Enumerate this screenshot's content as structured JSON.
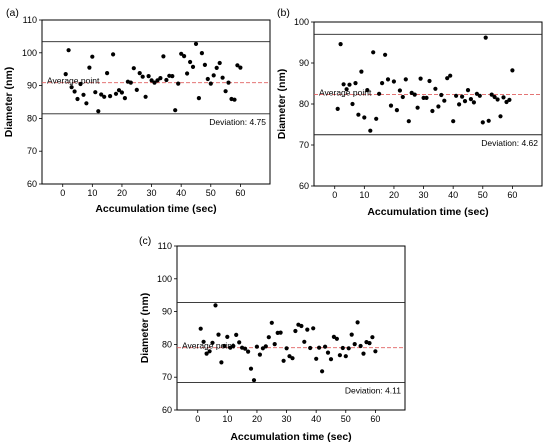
{
  "chart_data": [
    {
      "panel_label": "(a)",
      "type": "scatter",
      "xlabel": "Accumulation time (sec)",
      "ylabel": "Diameter (nm)",
      "xlim": [
        -7,
        70
      ],
      "ylim": [
        60,
        110
      ],
      "xticks": [
        0,
        10,
        20,
        30,
        40,
        50,
        60
      ],
      "yticks": [
        60,
        70,
        80,
        90,
        100,
        110
      ],
      "average_label": "Average point",
      "deviation_label": "Deviation: 4.75",
      "lines": {
        "upper": 103.4,
        "average": 90.9,
        "lower": 81.4
      },
      "points": [
        {
          "x": 1,
          "y": 93.5
        },
        {
          "x": 2,
          "y": 100.8
        },
        {
          "x": 3,
          "y": 89.5
        },
        {
          "x": 4,
          "y": 88.2
        },
        {
          "x": 5,
          "y": 85.9
        },
        {
          "x": 6,
          "y": 90.5
        },
        {
          "x": 7,
          "y": 87.2
        },
        {
          "x": 8,
          "y": 84.6
        },
        {
          "x": 9,
          "y": 95.5
        },
        {
          "x": 10,
          "y": 98.8
        },
        {
          "x": 11,
          "y": 88.0
        },
        {
          "x": 12,
          "y": 82.2
        },
        {
          "x": 13,
          "y": 87.3
        },
        {
          "x": 14,
          "y": 86.6
        },
        {
          "x": 15,
          "y": 93.8
        },
        {
          "x": 16,
          "y": 86.8
        },
        {
          "x": 17,
          "y": 99.5
        },
        {
          "x": 18,
          "y": 87.5
        },
        {
          "x": 19,
          "y": 88.6
        },
        {
          "x": 20,
          "y": 87.9
        },
        {
          "x": 21,
          "y": 86.2
        },
        {
          "x": 22,
          "y": 91.2
        },
        {
          "x": 23,
          "y": 90.9
        },
        {
          "x": 24,
          "y": 95.3
        },
        {
          "x": 25,
          "y": 88.7
        },
        {
          "x": 26,
          "y": 93.8
        },
        {
          "x": 27,
          "y": 92.7
        },
        {
          "x": 28,
          "y": 86.6
        },
        {
          "x": 29,
          "y": 92.9
        },
        {
          "x": 30,
          "y": 91.6
        },
        {
          "x": 31,
          "y": 90.9
        },
        {
          "x": 32,
          "y": 91.6
        },
        {
          "x": 33,
          "y": 92.3
        },
        {
          "x": 34,
          "y": 98.9
        },
        {
          "x": 35,
          "y": 91.7
        },
        {
          "x": 36,
          "y": 93.0
        },
        {
          "x": 37,
          "y": 92.9
        },
        {
          "x": 38,
          "y": 82.5
        },
        {
          "x": 39,
          "y": 90.6
        },
        {
          "x": 40,
          "y": 99.7
        },
        {
          "x": 41,
          "y": 99.0
        },
        {
          "x": 42,
          "y": 93.7
        },
        {
          "x": 43,
          "y": 97.2
        },
        {
          "x": 44,
          "y": 95.7
        },
        {
          "x": 45,
          "y": 102.7
        },
        {
          "x": 46,
          "y": 86.2
        },
        {
          "x": 47,
          "y": 99.9
        },
        {
          "x": 48,
          "y": 96.3
        },
        {
          "x": 49,
          "y": 92.0
        },
        {
          "x": 50,
          "y": 90.6
        },
        {
          "x": 51,
          "y": 93.1
        },
        {
          "x": 52,
          "y": 95.4
        },
        {
          "x": 53,
          "y": 96.9
        },
        {
          "x": 54,
          "y": 92.4
        },
        {
          "x": 55,
          "y": 88.3
        },
        {
          "x": 56,
          "y": 90.9
        },
        {
          "x": 57,
          "y": 85.9
        },
        {
          "x": 58,
          "y": 85.7
        },
        {
          "x": 59,
          "y": 96.2
        },
        {
          "x": 60,
          "y": 95.5
        }
      ]
    },
    {
      "panel_label": "(b)",
      "type": "scatter",
      "xlabel": "Accumulation time (sec)",
      "ylabel": "Diameter (nm)",
      "xlim": [
        -7,
        70
      ],
      "ylim": [
        60,
        100
      ],
      "xticks": [
        0,
        10,
        20,
        30,
        40,
        50,
        60
      ],
      "yticks": [
        60,
        70,
        80,
        90,
        100
      ],
      "average_label": "Average point",
      "deviation_label": "Deviation: 4.62",
      "lines": {
        "upper": 97.0,
        "average": 82.3,
        "lower": 72.5
      },
      "points": [
        {
          "x": 1,
          "y": 78.8
        },
        {
          "x": 2,
          "y": 94.6
        },
        {
          "x": 3,
          "y": 84.8
        },
        {
          "x": 4,
          "y": 83.6
        },
        {
          "x": 5,
          "y": 84.7
        },
        {
          "x": 6,
          "y": 80.0
        },
        {
          "x": 7,
          "y": 85.1
        },
        {
          "x": 8,
          "y": 77.4
        },
        {
          "x": 9,
          "y": 87.9
        },
        {
          "x": 10,
          "y": 76.7
        },
        {
          "x": 11,
          "y": 83.4
        },
        {
          "x": 12,
          "y": 73.5
        },
        {
          "x": 13,
          "y": 92.6
        },
        {
          "x": 14,
          "y": 76.4
        },
        {
          "x": 15,
          "y": 82.5
        },
        {
          "x": 16,
          "y": 85.1
        },
        {
          "x": 17,
          "y": 92.0
        },
        {
          "x": 18,
          "y": 86.0
        },
        {
          "x": 19,
          "y": 79.6
        },
        {
          "x": 20,
          "y": 85.5
        },
        {
          "x": 21,
          "y": 78.5
        },
        {
          "x": 22,
          "y": 83.3
        },
        {
          "x": 23,
          "y": 81.7
        },
        {
          "x": 24,
          "y": 86.0
        },
        {
          "x": 25,
          "y": 75.8
        },
        {
          "x": 26,
          "y": 82.7
        },
        {
          "x": 27,
          "y": 82.3
        },
        {
          "x": 28,
          "y": 79.1
        },
        {
          "x": 29,
          "y": 86.2
        },
        {
          "x": 30,
          "y": 81.5
        },
        {
          "x": 31,
          "y": 81.5
        },
        {
          "x": 32,
          "y": 85.6
        },
        {
          "x": 33,
          "y": 78.3
        },
        {
          "x": 34,
          "y": 83.7
        },
        {
          "x": 35,
          "y": 79.4
        },
        {
          "x": 36,
          "y": 82.2
        },
        {
          "x": 37,
          "y": 80.8
        },
        {
          "x": 38,
          "y": 86.3
        },
        {
          "x": 39,
          "y": 86.9
        },
        {
          "x": 40,
          "y": 75.8
        },
        {
          "x": 41,
          "y": 82.0
        },
        {
          "x": 42,
          "y": 79.9
        },
        {
          "x": 43,
          "y": 81.8
        },
        {
          "x": 44,
          "y": 80.7
        },
        {
          "x": 45,
          "y": 83.4
        },
        {
          "x": 46,
          "y": 81.2
        },
        {
          "x": 47,
          "y": 80.4
        },
        {
          "x": 48,
          "y": 82.5
        },
        {
          "x": 49,
          "y": 82.0
        },
        {
          "x": 50,
          "y": 75.5
        },
        {
          "x": 51,
          "y": 96.2
        },
        {
          "x": 52,
          "y": 75.9
        },
        {
          "x": 53,
          "y": 82.3
        },
        {
          "x": 54,
          "y": 81.7
        },
        {
          "x": 55,
          "y": 81.1
        },
        {
          "x": 56,
          "y": 77.0
        },
        {
          "x": 57,
          "y": 81.6
        },
        {
          "x": 58,
          "y": 80.5
        },
        {
          "x": 59,
          "y": 81.0
        },
        {
          "x": 60,
          "y": 88.2
        }
      ]
    },
    {
      "panel_label": "(c)",
      "type": "scatter",
      "xlabel": "Accumulation time (sec)",
      "ylabel": "Diameter (nm)",
      "xlim": [
        -7,
        70
      ],
      "ylim": [
        60,
        110
      ],
      "xticks": [
        0,
        10,
        20,
        30,
        40,
        50,
        60
      ],
      "yticks": [
        60,
        70,
        80,
        90,
        100,
        110
      ],
      "average_label": "Average point",
      "deviation_label": "Deviation: 4.11",
      "lines": {
        "upper": 92.8,
        "average": 79.0,
        "lower": 68.4
      },
      "points": [
        {
          "x": 1,
          "y": 84.8
        },
        {
          "x": 2,
          "y": 80.8
        },
        {
          "x": 3,
          "y": 77.2
        },
        {
          "x": 4,
          "y": 77.9
        },
        {
          "x": 5,
          "y": 80.5
        },
        {
          "x": 6,
          "y": 91.9
        },
        {
          "x": 7,
          "y": 83.0
        },
        {
          "x": 8,
          "y": 74.5
        },
        {
          "x": 9,
          "y": 79.5
        },
        {
          "x": 10,
          "y": 82.3
        },
        {
          "x": 11,
          "y": 79.0
        },
        {
          "x": 12,
          "y": 79.5
        },
        {
          "x": 13,
          "y": 82.9
        },
        {
          "x": 14,
          "y": 80.6
        },
        {
          "x": 15,
          "y": 79.0
        },
        {
          "x": 16,
          "y": 78.7
        },
        {
          "x": 17,
          "y": 77.8
        },
        {
          "x": 18,
          "y": 72.6
        },
        {
          "x": 19,
          "y": 69.1
        },
        {
          "x": 20,
          "y": 79.3
        },
        {
          "x": 21,
          "y": 76.9
        },
        {
          "x": 22,
          "y": 78.8
        },
        {
          "x": 23,
          "y": 79.4
        },
        {
          "x": 24,
          "y": 82.2
        },
        {
          "x": 25,
          "y": 86.6
        },
        {
          "x": 26,
          "y": 80.1
        },
        {
          "x": 27,
          "y": 83.5
        },
        {
          "x": 28,
          "y": 83.6
        },
        {
          "x": 29,
          "y": 75.0
        },
        {
          "x": 30,
          "y": 78.8
        },
        {
          "x": 31,
          "y": 76.4
        },
        {
          "x": 32,
          "y": 75.8
        },
        {
          "x": 33,
          "y": 84.1
        },
        {
          "x": 34,
          "y": 86.0
        },
        {
          "x": 35,
          "y": 85.6
        },
        {
          "x": 36,
          "y": 80.8
        },
        {
          "x": 37,
          "y": 84.5
        },
        {
          "x": 38,
          "y": 78.9
        },
        {
          "x": 39,
          "y": 84.9
        },
        {
          "x": 40,
          "y": 75.6
        },
        {
          "x": 41,
          "y": 79.0
        },
        {
          "x": 42,
          "y": 71.8
        },
        {
          "x": 43,
          "y": 79.3
        },
        {
          "x": 44,
          "y": 77.5
        },
        {
          "x": 45,
          "y": 75.5
        },
        {
          "x": 46,
          "y": 82.3
        },
        {
          "x": 47,
          "y": 81.7
        },
        {
          "x": 48,
          "y": 76.7
        },
        {
          "x": 49,
          "y": 78.9
        },
        {
          "x": 50,
          "y": 76.4
        },
        {
          "x": 51,
          "y": 78.8
        },
        {
          "x": 52,
          "y": 83.0
        },
        {
          "x": 53,
          "y": 80.1
        },
        {
          "x": 54,
          "y": 86.7
        },
        {
          "x": 55,
          "y": 79.5
        },
        {
          "x": 56,
          "y": 77.2
        },
        {
          "x": 57,
          "y": 80.7
        },
        {
          "x": 58,
          "y": 80.4
        },
        {
          "x": 59,
          "y": 82.2
        },
        {
          "x": 60,
          "y": 77.9
        }
      ]
    }
  ]
}
